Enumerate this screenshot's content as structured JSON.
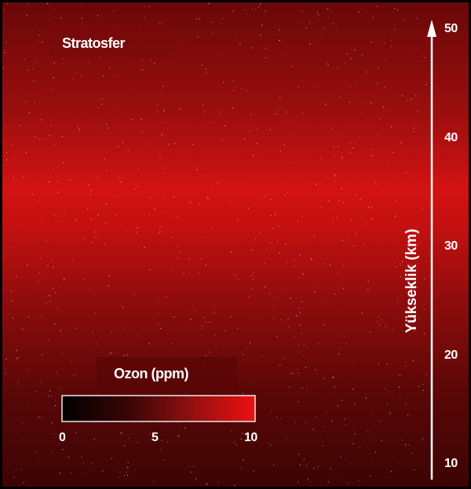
{
  "region_label": "Stratosfer",
  "legend": {
    "title": "Ozon (ppm)",
    "ticks": [
      "0",
      "5",
      "10"
    ],
    "min": 0,
    "max": 10,
    "colors": [
      "#000000",
      "#3a0606",
      "#9a1010",
      "#ee1010"
    ]
  },
  "altitude_axis": {
    "label": "Yükseklik (km)",
    "ticks": [
      "10",
      "20",
      "30",
      "40",
      "50"
    ],
    "min": 10,
    "max": 50,
    "ozone_peak_km": 35
  },
  "colors": {
    "peak_band": "#d01010",
    "background_dark": "#5a0606",
    "axis": "#ffffff"
  }
}
